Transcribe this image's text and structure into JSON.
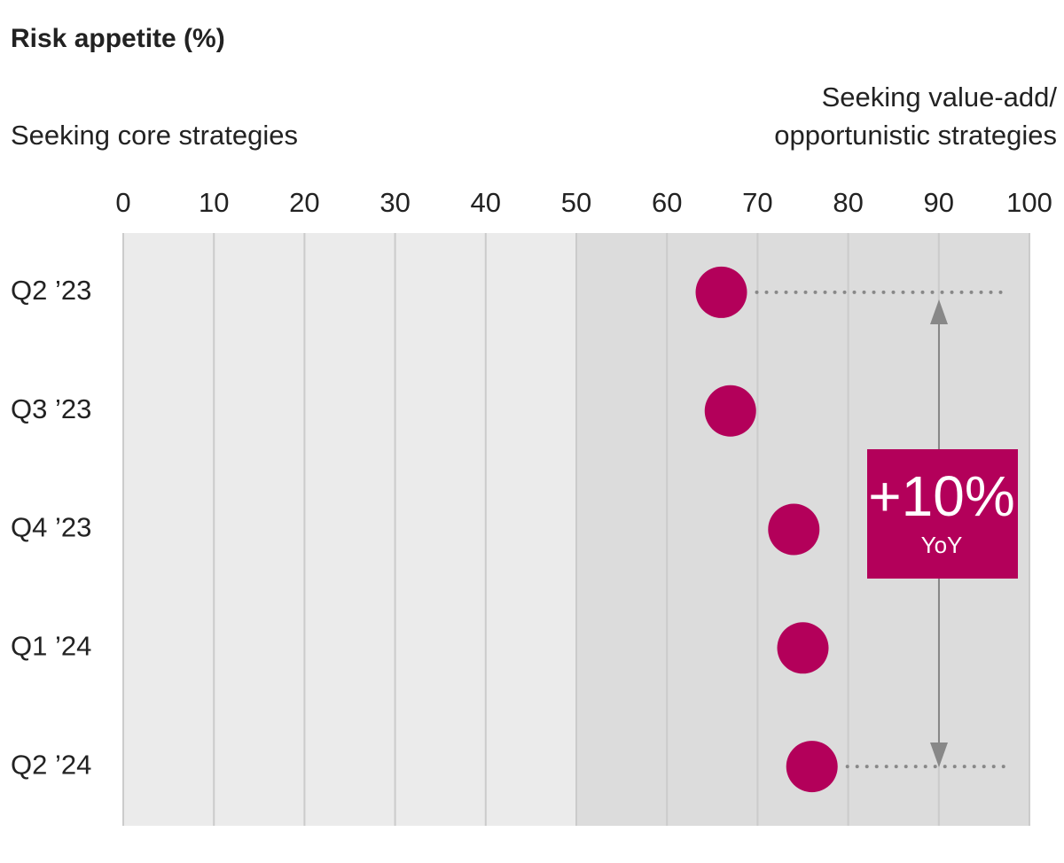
{
  "chart_data": {
    "type": "dot",
    "title": "Risk appetite (%)",
    "left_label": "Seeking core strategies",
    "right_label": [
      "Seeking value-add/",
      "opportunistic strategies"
    ],
    "categories": [
      "Q2 ’23",
      "Q3 ’23",
      "Q4 ’23",
      "Q1 ’24",
      "Q2 ’24"
    ],
    "values": [
      66,
      67,
      74,
      75,
      76
    ],
    "color": "#b3005a",
    "xlim": [
      0,
      100
    ],
    "xticks": [
      0,
      10,
      20,
      30,
      40,
      50,
      60,
      70,
      80,
      90,
      100
    ],
    "grid": true,
    "annotation": {
      "value": "+10%",
      "sub": "YoY"
    }
  }
}
